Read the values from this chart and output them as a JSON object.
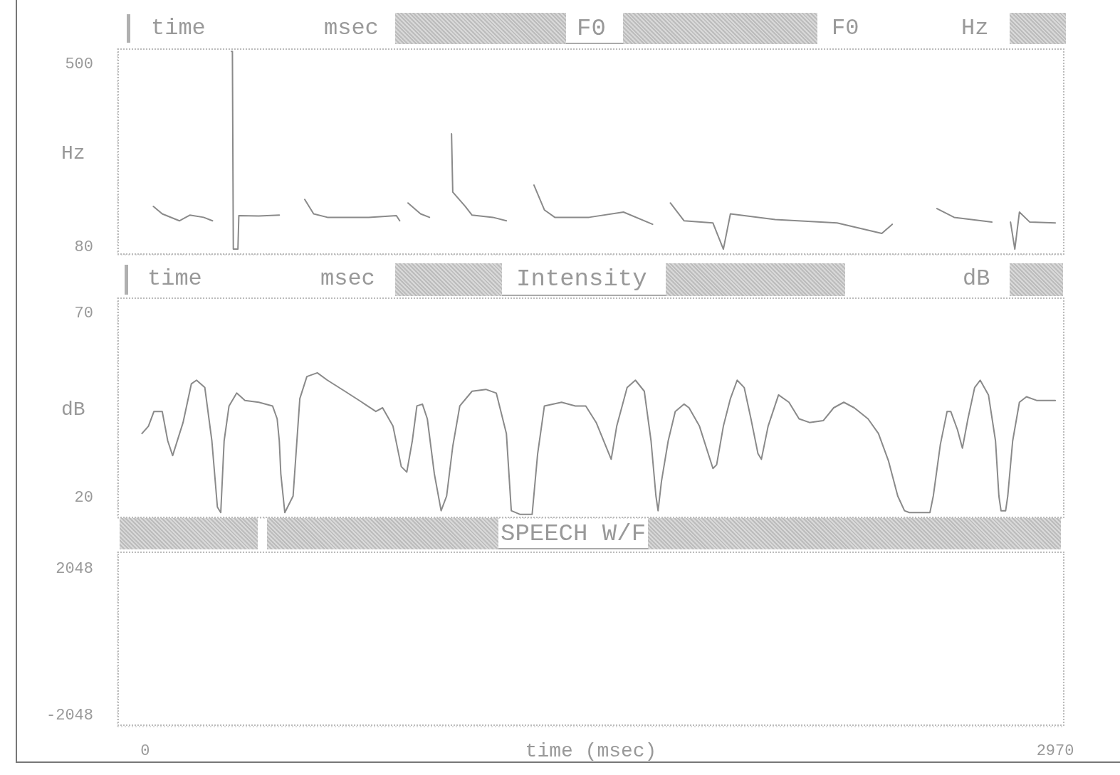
{
  "chart_data": [
    {
      "type": "line",
      "title": "F0",
      "annotations": [
        "time",
        "msec",
        "F0",
        "Hz"
      ],
      "ylabel": "Hz",
      "xlim": [
        -90,
        3000
      ],
      "ylim": [
        59,
        533
      ],
      "yticks": [
        80,
        500
      ],
      "tick_labels": "y",
      "grid": false,
      "legend": false,
      "marker": "none",
      "line_style": "solid",
      "series": [
        {
          "color": "#8a8a8a",
          "x": [
            27,
            56,
            112,
            146,
            191,
            220,
            250,
            282,
            285,
            288,
            303,
            306,
            371,
            438,
            480,
            521,
            550,
            595,
            730,
            820,
            831,
            845,
            858,
            899,
            928,
            965,
            1000,
            1004,
            1045,
            1067,
            1135,
            1179,
            1220,
            1269,
            1303,
            1337,
            1449,
            1561,
            1656,
            1690,
            1714,
            1759,
            1853,
            1887,
            1910,
            2056,
            2258,
            2404,
            2438,
            2510,
            2584,
            2640,
            2763,
            2800,
            2824,
            2838,
            2853,
            2887,
            2970
          ],
          "values": [
            170,
            153,
            137,
            150,
            145,
            137,
            null,
            526,
            526,
            72,
            72,
            149,
            148,
            150,
            null,
            186,
            153,
            145,
            145,
            149,
            137,
            null,
            178,
            153,
            145,
            null,
            337,
            203,
            170,
            150,
            145,
            137,
            null,
            219,
            162,
            145,
            145,
            157,
            129,
            null,
            178,
            137,
            132,
            72,
            153,
            140,
            132,
            108,
            129,
            null,
            165,
            145,
            134,
            null,
            134,
            72,
            157,
            134,
            132
          ]
        }
      ]
    },
    {
      "type": "line",
      "title": "Intensity",
      "annotations": [
        "time",
        "msec",
        "dB"
      ],
      "ylabel": "dB",
      "xlim": [
        -90,
        3000
      ],
      "ylim": [
        14,
        74
      ],
      "yticks": [
        20,
        70
      ],
      "tick_labels": "y",
      "grid": false,
      "legend": false,
      "marker": "none",
      "line_style": "solid",
      "series": [
        {
          "color": "#8a8a8a",
          "x": [
            -10,
            11,
            29,
            56,
            74,
            90,
            124,
            151,
            168,
            195,
            218,
            236,
            247,
            258,
            274,
            299,
            326,
            371,
            416,
            431,
            438,
            443,
            456,
            483,
            505,
            528,
            562,
            595,
            652,
            708,
            753,
            775,
            809,
            836,
            854,
            872,
            887,
            905,
            921,
            944,
            966,
            984,
            1004,
            1027,
            1067,
            1112,
            1146,
            1179,
            1195,
            1224,
            1263,
            1281,
            1303,
            1359,
            1404,
            1438,
            1472,
            1521,
            1539,
            1573,
            1600,
            1629,
            1651,
            1667,
            1674,
            1685,
            1707,
            1730,
            1759,
            1775,
            1809,
            1853,
            1865,
            1887,
            1910,
            1932,
            1955,
            1977,
            2000,
            2011,
            2033,
            2067,
            2101,
            2134,
            2168,
            2213,
            2247,
            2280,
            2314,
            2359,
            2393,
            2426,
            2456,
            2478,
            2494,
            2561,
            2572,
            2595,
            2617,
            2629,
            2651,
            2667,
            2685,
            2707,
            2725,
            2752,
            2775,
            2786,
            2793,
            2808,
            2815,
            2831,
            2853,
            2876,
            2909,
            2954,
            2970
          ],
          "values": [
            37,
            39,
            43,
            43,
            35,
            31,
            40,
            50.5,
            51.5,
            49.5,
            35,
            17,
            15.5,
            35,
            44.5,
            48,
            46,
            45.5,
            44.5,
            41,
            35,
            26,
            15.5,
            20,
            46.5,
            52.5,
            53.5,
            51.5,
            48.5,
            45.5,
            43,
            44,
            39,
            28,
            26.5,
            35,
            44.5,
            45,
            41,
            26,
            16,
            20,
            33.5,
            44.5,
            48.5,
            49,
            48,
            37,
            16,
            15,
            15,
            31.5,
            44.5,
            45.5,
            44.5,
            44.5,
            40,
            30,
            39,
            49.5,
            51.5,
            48.5,
            35,
            20,
            16,
            24,
            35,
            43,
            45,
            44,
            39,
            27.5,
            28.5,
            39,
            46.5,
            51.5,
            49.5,
            41,
            31.5,
            30,
            39,
            47.5,
            45.5,
            41,
            40,
            40.5,
            44,
            45.5,
            44,
            41,
            37,
            29.5,
            20,
            16,
            15.5,
            15.5,
            20,
            34,
            43,
            43,
            38,
            33,
            41,
            49.5,
            51.5,
            47.5,
            35,
            20,
            16,
            16,
            20,
            35,
            45.5,
            47,
            46,
            46,
            46
          ]
        }
      ]
    },
    {
      "type": "line",
      "title": "SPEECH W/F",
      "xlabel": "time (msec)",
      "xlim": [
        -90,
        3000
      ],
      "xticks": [
        0,
        2970
      ],
      "ylim": [
        -2400,
        2480
      ],
      "yticks": [
        -2048,
        2048
      ],
      "grid": false,
      "legend": false
    }
  ]
}
